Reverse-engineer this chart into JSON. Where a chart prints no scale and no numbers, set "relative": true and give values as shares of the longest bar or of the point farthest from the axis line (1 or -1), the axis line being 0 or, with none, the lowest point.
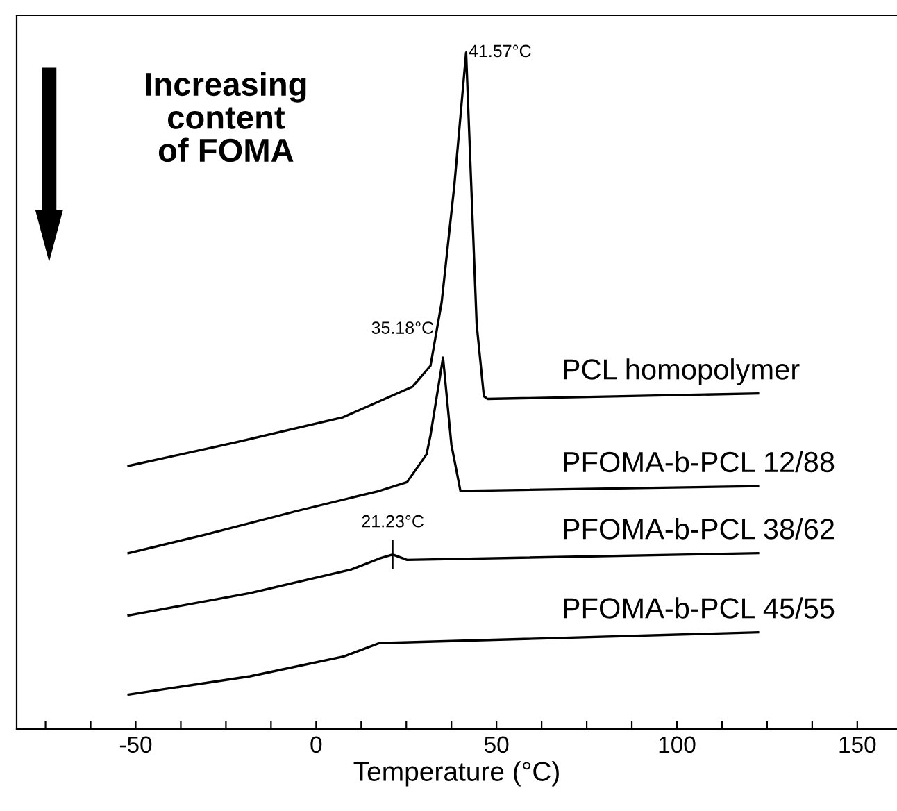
{
  "chart_data": {
    "type": "line",
    "relative": true,
    "xlabel": "Temperature (°C)",
    "xlim": [
      -83,
      161
    ],
    "xticks": [
      {
        "value": -75,
        "label": null
      },
      {
        "value": -62.5,
        "label": null
      },
      -50,
      {
        "value": -37.5,
        "label": null
      },
      {
        "value": -25,
        "label": null
      },
      {
        "value": -12.5,
        "label": null
      },
      0,
      {
        "value": 12.5,
        "label": null
      },
      {
        "value": 25,
        "label": null
      },
      {
        "value": 37.5,
        "label": null
      },
      50,
      {
        "value": 62.5,
        "label": null
      },
      {
        "value": 75,
        "label": null
      },
      {
        "value": 87.5,
        "label": null
      },
      100,
      {
        "value": 112.5,
        "label": null
      },
      {
        "value": 125,
        "label": null
      },
      {
        "value": 137.5,
        "label": null
      },
      150
    ],
    "tick_labels": "x",
    "grid": false,
    "legend": false,
    "marker": "none",
    "line_style": "solid",
    "series": [
      {
        "name": "PCL homopolymer",
        "color": "#000000",
        "x": [
          -52,
          -22.1,
          7.5,
          26.7,
          31.7,
          34.8,
          38.3,
          41.57,
          43,
          44.5,
          46.5,
          47.5,
          122.5
        ],
        "values": [
          0.389,
          0.424,
          0.461,
          0.506,
          0.537,
          0.631,
          0.803,
          1.0,
          0.803,
          0.598,
          0.492,
          0.488,
          0.496
        ]
      },
      {
        "name": "PFOMA-b-PCL 12/88",
        "color": "#000000",
        "x": [
          -52,
          -31,
          -5.6,
          17.5,
          25.2,
          30.6,
          31.7,
          35.18,
          37.5,
          38.5,
          40,
          122.5
        ],
        "values": [
          0.26,
          0.287,
          0.322,
          0.352,
          0.365,
          0.406,
          0.434,
          0.549,
          0.42,
          0.393,
          0.352,
          0.359
        ]
      },
      {
        "name": "PFOMA-b-PCL 38/62",
        "color": "#000000",
        "x": [
          -52,
          -18.3,
          9.8,
          17.5,
          21.23,
          25.2,
          122.5
        ],
        "values": [
          0.168,
          0.201,
          0.236,
          0.252,
          0.258,
          0.25,
          0.26
        ]
      },
      {
        "name": "PFOMA-b-PCL 45/55",
        "color": "#000000",
        "x": [
          -52,
          -18.3,
          7.5,
          17.5,
          122.5
        ],
        "values": [
          0.051,
          0.078,
          0.107,
          0.127,
          0.143
        ]
      }
    ],
    "annotations": [
      {
        "text": "41.57°C",
        "x": 41.57,
        "y": 1.0
      },
      {
        "text": "35.18°C",
        "x": 35.18,
        "y": 0.549
      },
      {
        "text": "21.23°C",
        "x": 21.23,
        "y": 0.258
      },
      "Increasing\ncontent\nof FOMA"
    ]
  }
}
